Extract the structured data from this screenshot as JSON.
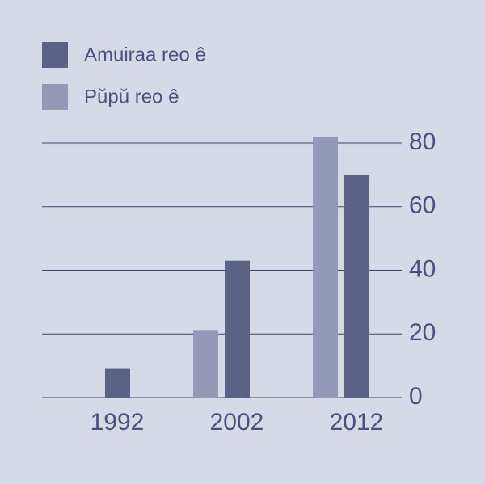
{
  "chart_data": {
    "type": "bar",
    "categories": [
      "1992",
      "2002",
      "2012"
    ],
    "series": [
      {
        "name": "Amuiraa reo ê",
        "color": "#5b6286",
        "values": [
          9,
          43,
          70
        ]
      },
      {
        "name": "Pŭpŭ reo ê",
        "color": "#9499b8",
        "values": [
          null,
          21,
          82
        ]
      }
    ],
    "ylim": [
      0,
      80
    ],
    "yticks": [
      0,
      20,
      40,
      60,
      80
    ],
    "grid": true,
    "legend": "top-left"
  }
}
